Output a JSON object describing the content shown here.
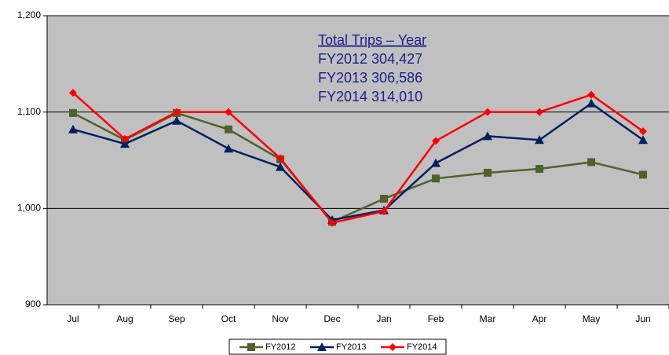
{
  "chart_data": {
    "type": "line",
    "categories": [
      "Jul",
      "Aug",
      "Sep",
      "Oct",
      "Nov",
      "Dec",
      "Jan",
      "Feb",
      "Mar",
      "Apr",
      "May",
      "Jun"
    ],
    "series": [
      {
        "name": "FY2012",
        "color": "#4f6228",
        "marker": "square",
        "values": [
          1099,
          1071,
          1099,
          1082,
          1051,
          986,
          1010,
          1031,
          1037,
          1041,
          1048,
          1035
        ]
      },
      {
        "name": "FY2013",
        "color": "#002060",
        "marker": "triangle",
        "values": [
          1082,
          1067,
          1091,
          1062,
          1043,
          988,
          998,
          1047,
          1075,
          1071,
          1109,
          1071
        ]
      },
      {
        "name": "FY2014",
        "color": "#ff0000",
        "marker": "diamond",
        "values": [
          1120,
          1072,
          1100,
          1100,
          1052,
          985,
          997,
          1070,
          1100,
          1100,
          1118,
          1080
        ]
      }
    ],
    "ylim": [
      900,
      1200
    ],
    "yticks": [
      900,
      {
        "value": 1000,
        "label": "1,000"
      },
      {
        "value": 1100,
        "label": "1,100"
      },
      {
        "value": 1200,
        "label": "1,200"
      }
    ],
    "grid": true,
    "legend": "bottom",
    "annotations": [
      "Total Trips –  Year",
      "FY2012   304,427",
      "FY2013   306,586",
      "FY2014   314,010"
    ]
  }
}
